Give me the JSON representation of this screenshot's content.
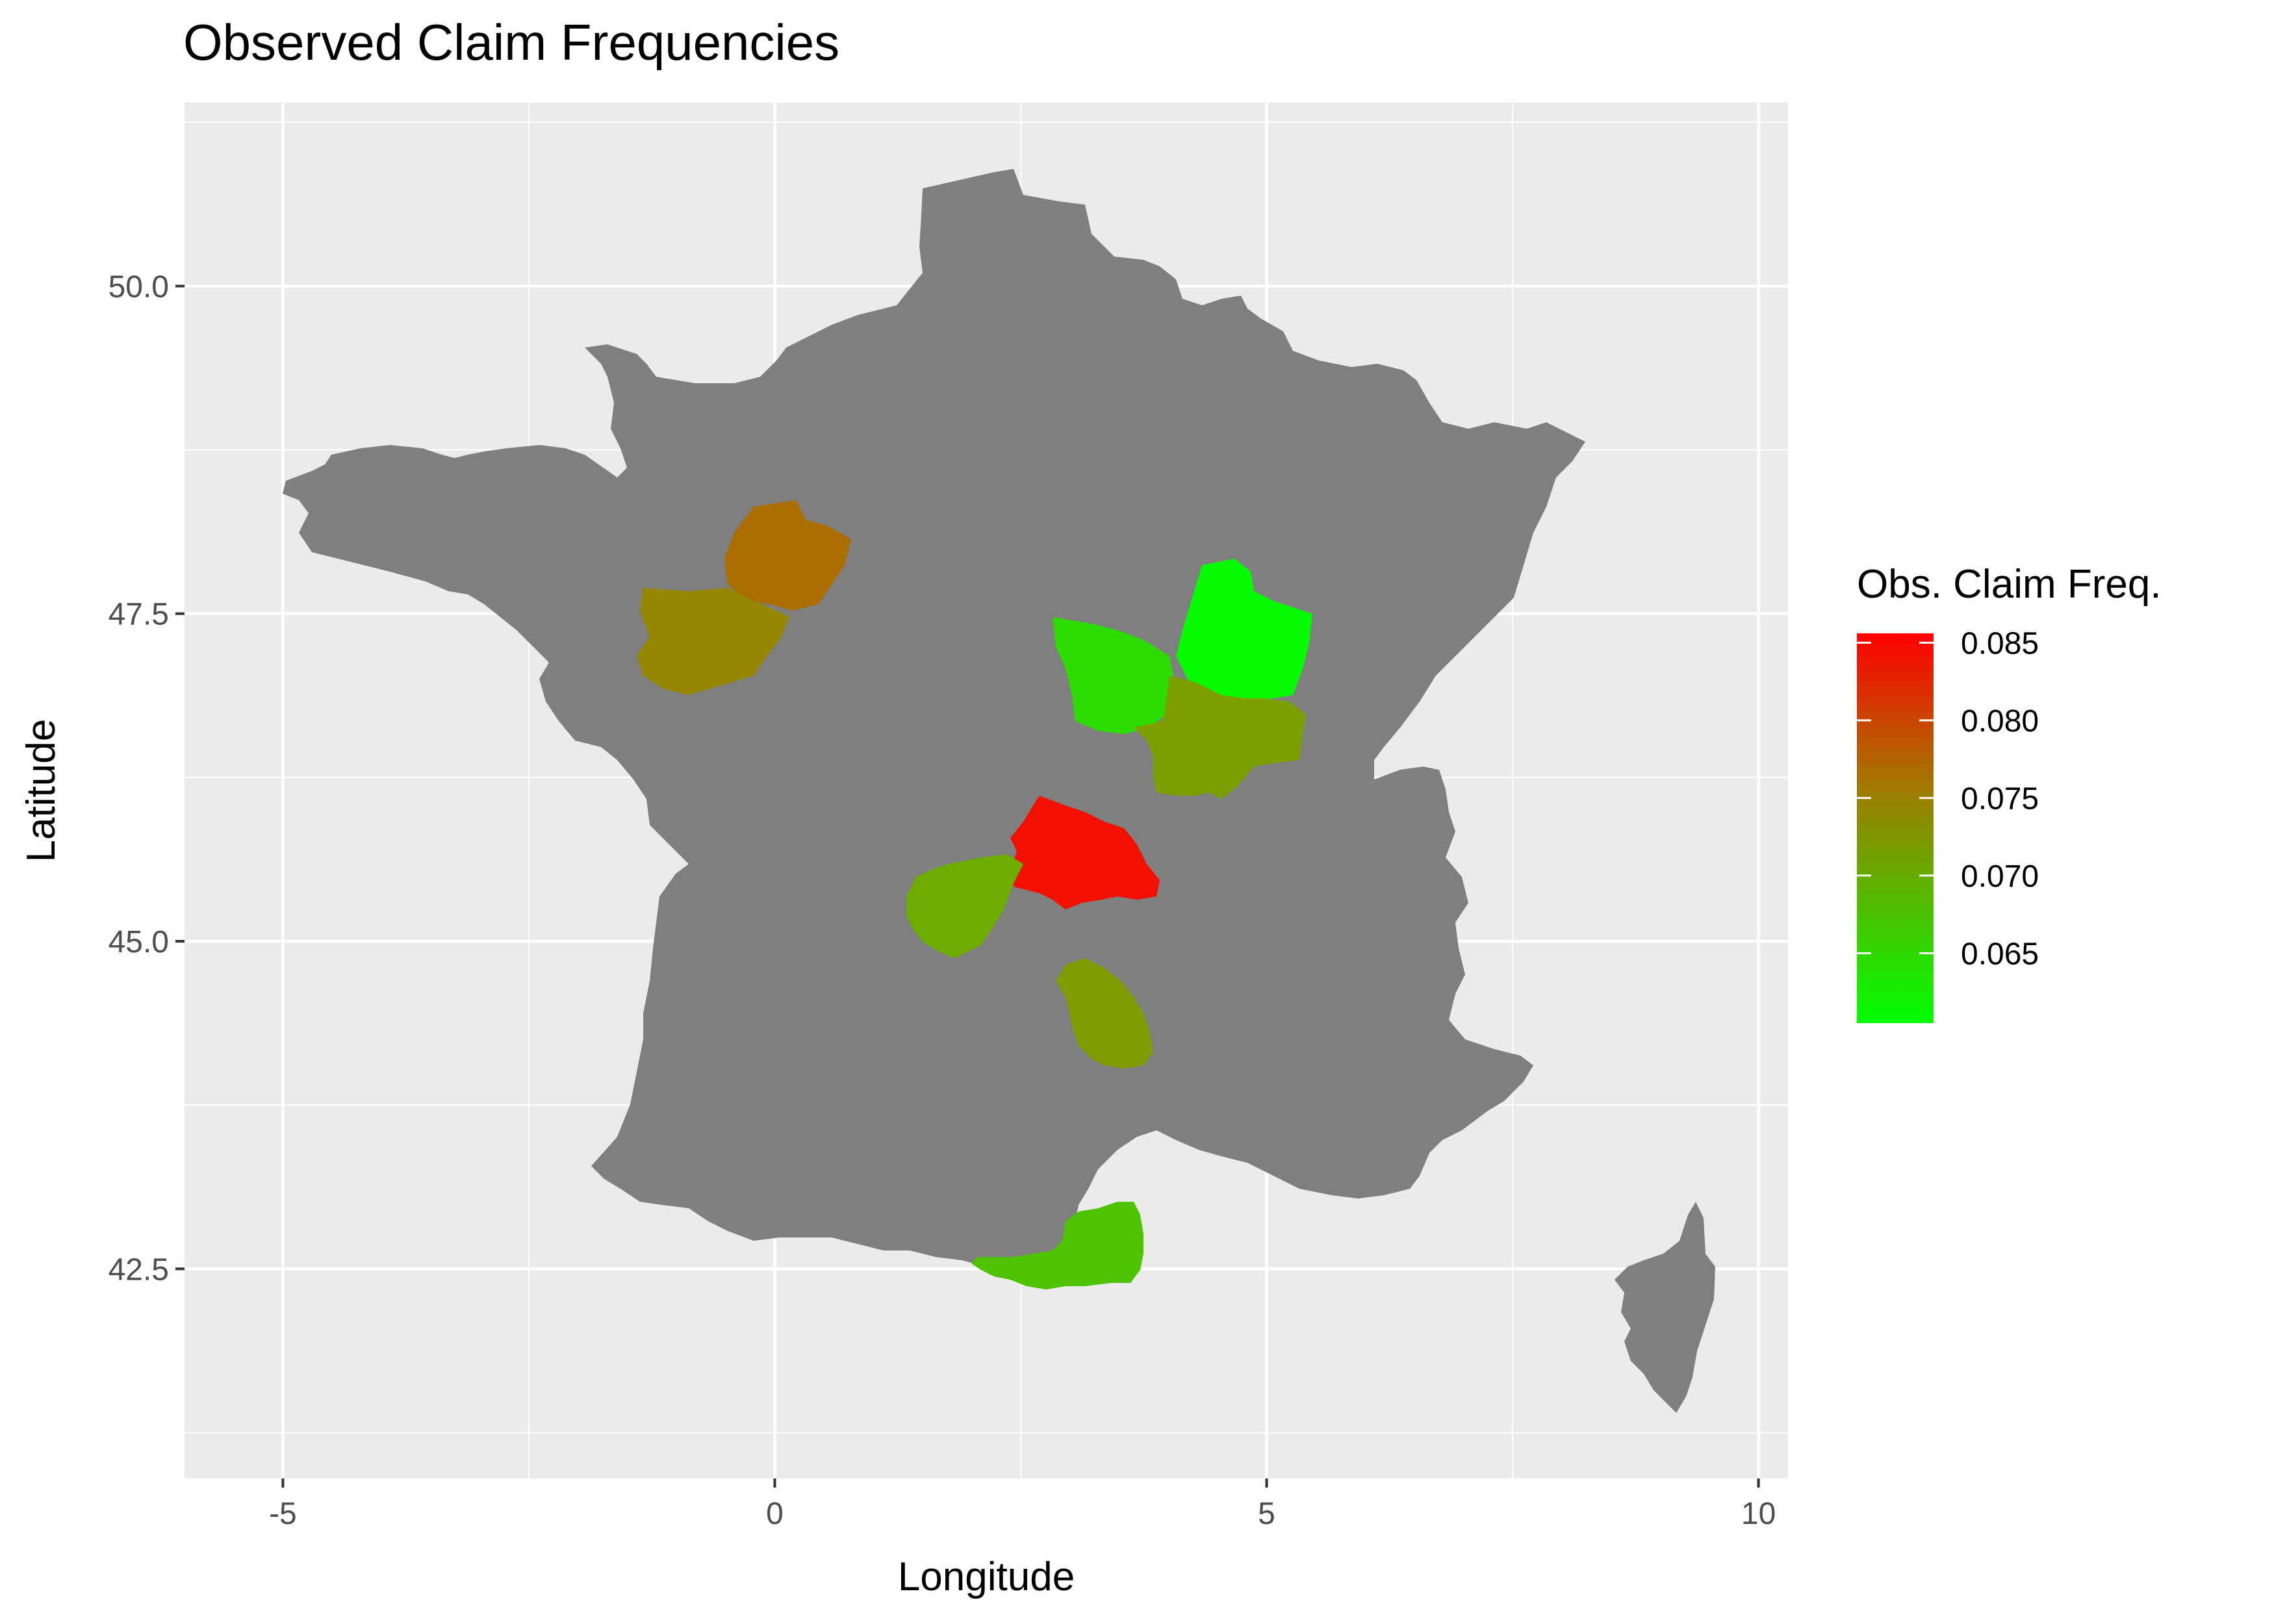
{
  "chart_data": {
    "type": "map",
    "title": "Observed Claim Frequencies",
    "xlabel": "Longitude",
    "ylabel": "Latitude",
    "xlim": [
      -6,
      10.3
    ],
    "ylim": [
      40.9,
      51.4
    ],
    "x_ticks": [
      -5,
      0,
      5,
      10
    ],
    "x_tick_labels": [
      "-5",
      "0",
      "5",
      "10"
    ],
    "y_ticks": [
      42.5,
      45.0,
      47.5,
      50.0
    ],
    "y_tick_labels": [
      "42.5",
      "45.0",
      "47.5",
      "50.0"
    ],
    "grid": true,
    "base_fill": "#7f7f7f",
    "panel_background": "#ebebeb",
    "legend": {
      "title": "Obs. Claim Freq.",
      "position": "right",
      "low": 0.0605,
      "high": 0.0856,
      "low_color": "#00ff00",
      "high_color": "#ff0000",
      "breaks": [
        0.065,
        0.07,
        0.075,
        0.08,
        0.085
      ],
      "break_labels": [
        "0.065",
        "0.070",
        "0.075",
        "0.080",
        "0.085"
      ]
    },
    "regions": [
      {
        "lon": 0.2,
        "lat": 47.9,
        "value": 0.077
      },
      {
        "lon": -0.5,
        "lat": 47.3,
        "value": 0.074
      },
      {
        "lon": 3.3,
        "lat": 47.1,
        "value": 0.0635
      },
      {
        "lon": 4.7,
        "lat": 47.4,
        "value": 0.0608
      },
      {
        "lon": 4.6,
        "lat": 46.6,
        "value": 0.0705
      },
      {
        "lon": 3.0,
        "lat": 45.7,
        "value": 0.0845
      },
      {
        "lon": 1.9,
        "lat": 45.3,
        "value": 0.069
      },
      {
        "lon": 3.5,
        "lat": 44.5,
        "value": 0.071
      },
      {
        "lon": 2.4,
        "lat": 42.6,
        "value": 0.066
      }
    ]
  }
}
